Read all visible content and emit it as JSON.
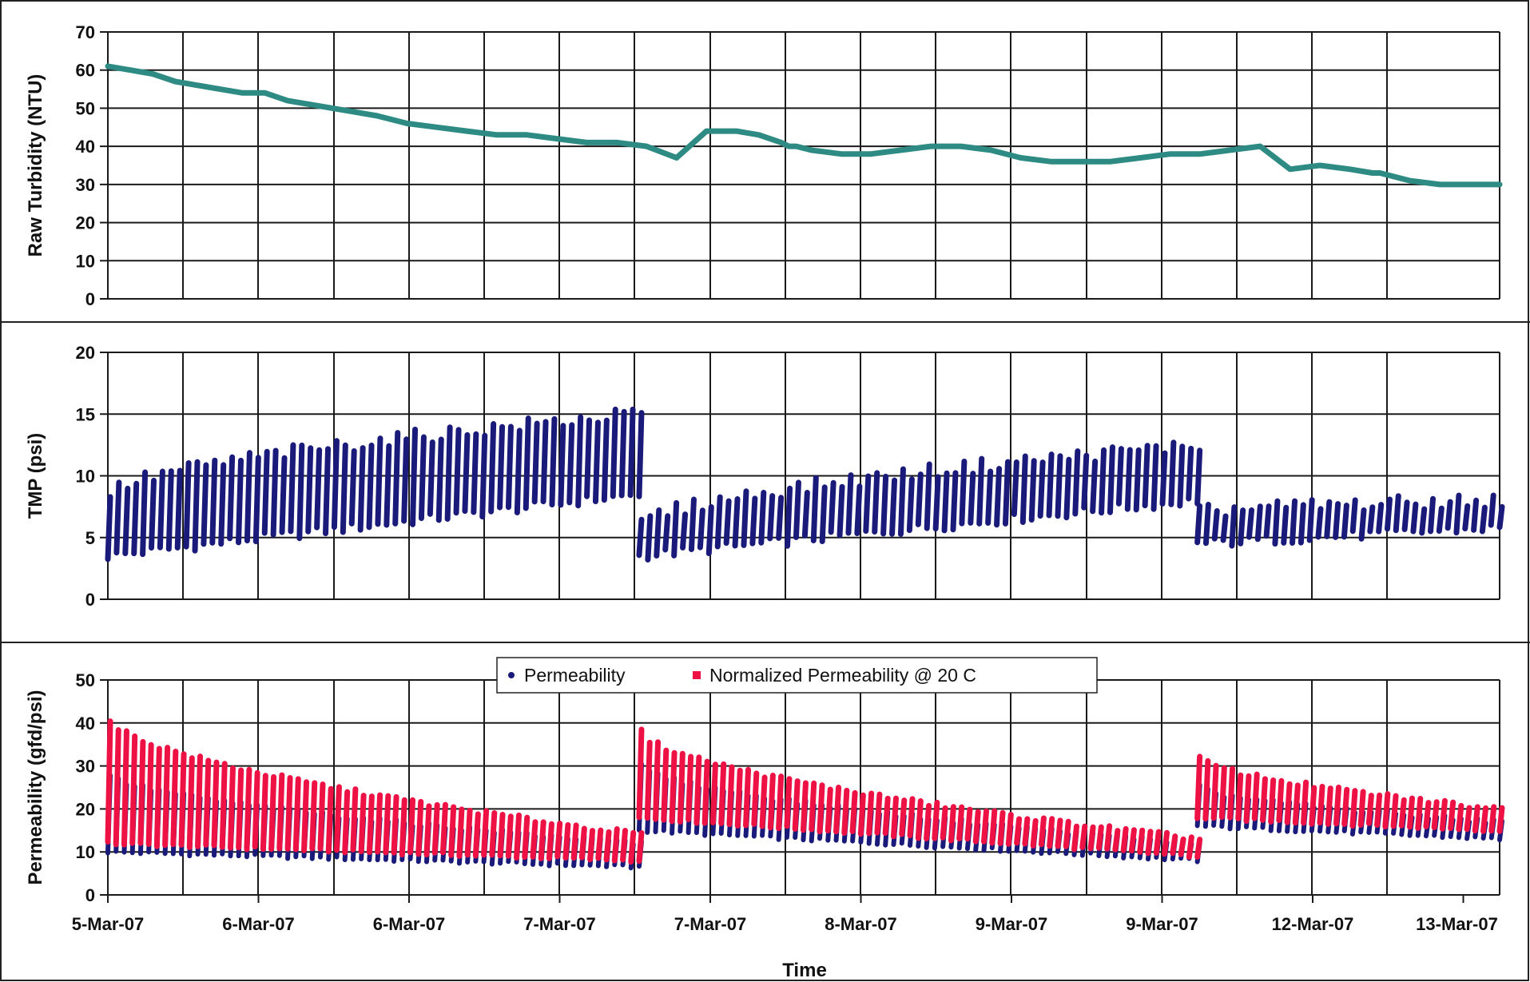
{
  "figure": {
    "xlabel": "Time",
    "x_tick_labels": [
      "5-Mar-07",
      "6-Mar-07",
      "6-Mar-07",
      "7-Mar-07",
      "7-Mar-07",
      "8-Mar-07",
      "9-Mar-07",
      "9-Mar-07",
      "12-Mar-07",
      "13-Mar-07"
    ]
  },
  "chart_data": [
    {
      "type": "line",
      "ylabel": "Raw Turbidity (NTU)",
      "xlabel": "Time",
      "ylim": [
        0,
        70
      ],
      "y_ticks": [
        0,
        10,
        20,
        30,
        40,
        50,
        60,
        70
      ],
      "grid": true,
      "colors": {
        "series": "#2e8b84"
      },
      "series": [
        {
          "x": [
            0,
            0.15,
            0.3,
            0.45,
            0.6,
            0.75,
            0.9,
            1.05,
            1.2,
            1.35,
            1.5,
            1.65,
            1.8,
            2.0,
            2.2,
            2.4,
            2.6,
            2.8,
            3.0,
            3.2,
            3.4,
            3.6,
            3.8,
            4.0,
            4.2,
            4.35,
            4.5,
            4.55,
            4.6,
            4.7,
            4.9,
            5.1,
            5.3,
            5.5,
            5.7,
            5.9,
            6.1,
            6.3,
            6.5,
            6.7,
            6.9,
            7.1,
            7.3,
            7.5,
            7.7,
            7.9,
            8.1,
            8.3,
            8.45,
            8.5,
            8.7,
            8.9,
            9.1,
            9.3
          ],
          "values": [
            61,
            60,
            59,
            57,
            56,
            55,
            54,
            54,
            52,
            51,
            50,
            49,
            48,
            46,
            45,
            44,
            43,
            43,
            42,
            41,
            41,
            40,
            37,
            44,
            44,
            43,
            41,
            40,
            40,
            39,
            38,
            38,
            39,
            40,
            40,
            39,
            37,
            36,
            36,
            36,
            37,
            38,
            38,
            39,
            40,
            34,
            35,
            34,
            33,
            33,
            31,
            30,
            30,
            30
          ]
        }
      ]
    },
    {
      "type": "scatter",
      "ylabel": "TMP (psi)",
      "xlabel": "Time",
      "ylim": [
        0,
        20
      ],
      "y_ticks": [
        0,
        5,
        10,
        15,
        20
      ],
      "grid": true,
      "colors": {
        "series": "#1a1a7a"
      },
      "series": [
        {
          "name": "TMP",
          "segments": [
            {
              "x_start": 0.0,
              "x_end": 3.55,
              "low_start": 3.5,
              "low_end": 8.5,
              "high_start": 8.5,
              "high_end": 15
            },
            {
              "x_start": 3.55,
              "x_end": 7.28,
              "low_start": 3.5,
              "low_end": 8.0,
              "high_start": 6.0,
              "high_end": 12.5
            },
            {
              "x_start": 7.28,
              "x_end": 9.3,
              "low_start": 4.5,
              "low_end": 5.8,
              "high_start": 7.0,
              "high_end": 8.0
            }
          ]
        }
      ]
    },
    {
      "type": "scatter",
      "ylabel": "Permeability (gfd/psi)",
      "xlabel": "Time",
      "ylim": [
        0,
        50
      ],
      "y_ticks": [
        0,
        10,
        20,
        30,
        40,
        50
      ],
      "grid": true,
      "legend_position": "top-center",
      "series": [
        {
          "name": "Permeability",
          "color": "#1a1a7a",
          "segments": [
            {
              "x_start": 0.0,
              "x_end": 3.55,
              "low_start": 10,
              "low_end": 6.5,
              "high_start": 28,
              "high_end": 12
            },
            {
              "x_start": 3.55,
              "x_end": 7.28,
              "low_start": 15,
              "low_end": 8,
              "high_start": 30,
              "high_end": 12
            },
            {
              "x_start": 7.28,
              "x_end": 9.3,
              "low_start": 16,
              "low_end": 13,
              "high_start": 25,
              "high_end": 17
            }
          ]
        },
        {
          "name": "Normalized Permeability @ 20 C",
          "color": "#ee1144",
          "segments": [
            {
              "x_start": 0.0,
              "x_end": 3.55,
              "low_start": 12,
              "low_end": 8,
              "high_start": 41,
              "high_end": 14
            },
            {
              "x_start": 3.55,
              "x_end": 7.28,
              "low_start": 18,
              "low_end": 9,
              "high_start": 38,
              "high_end": 13
            },
            {
              "x_start": 7.28,
              "x_end": 9.3,
              "low_start": 18,
              "low_end": 15,
              "high_start": 32,
              "high_end": 20
            }
          ]
        }
      ]
    }
  ]
}
